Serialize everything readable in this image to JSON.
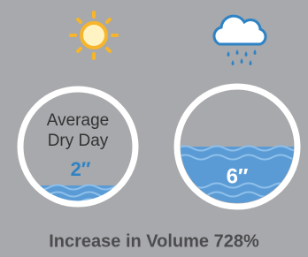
{
  "panels": [
    {
      "caption_lines": [
        "Average",
        "Dry Day"
      ],
      "level": "2″"
    },
    {
      "level": "6″"
    }
  ],
  "footer": "Increase in Volume 728%"
}
